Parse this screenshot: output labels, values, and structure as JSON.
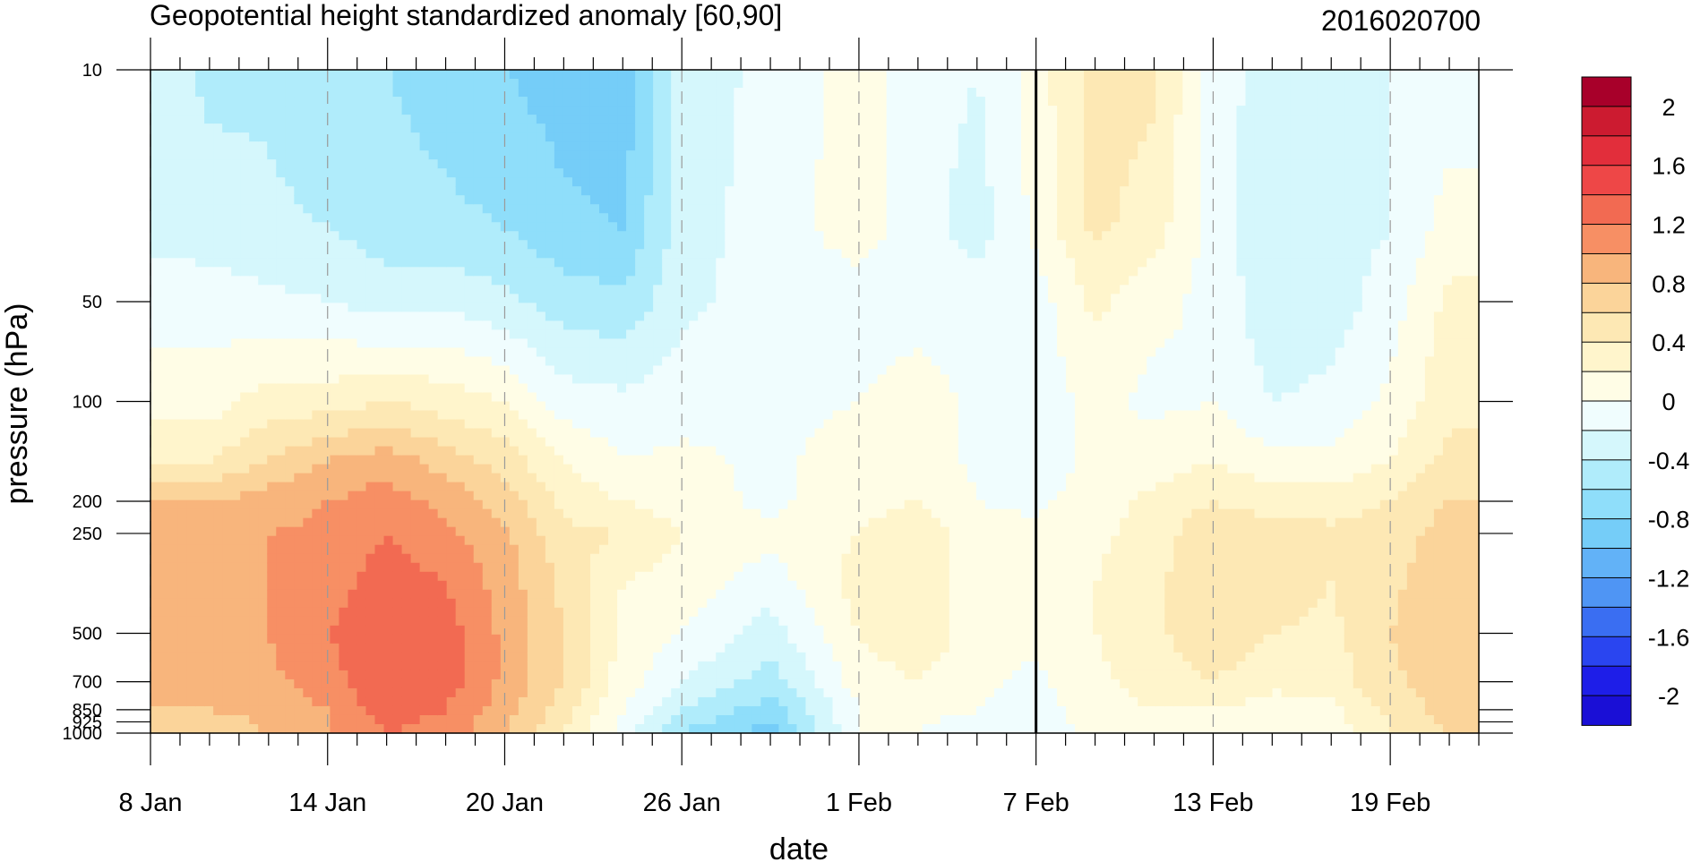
{
  "chart_data": {
    "type": "heatmap",
    "title": "Geopotential height standardized anomaly [60,90]",
    "date_label": "2016020700",
    "xlabel": "date",
    "ylabel": "pressure (hPa)",
    "x_range_days": [
      "2016-01-08",
      "2016-02-22"
    ],
    "x_ticks": [
      {
        "date": "2016-01-08",
        "label": "8 Jan"
      },
      {
        "date": "2016-01-14",
        "label": "14 Jan"
      },
      {
        "date": "2016-01-20",
        "label": "20 Jan"
      },
      {
        "date": "2016-01-26",
        "label": "26 Jan"
      },
      {
        "date": "2016-02-01",
        "label": "1 Feb"
      },
      {
        "date": "2016-02-07",
        "label": "7 Feb"
      },
      {
        "date": "2016-02-13",
        "label": "13 Feb"
      },
      {
        "date": "2016-02-19",
        "label": "19 Feb"
      }
    ],
    "y_scale": "log",
    "y_reversed": true,
    "y_range": [
      1000,
      10
    ],
    "y_ticks": [
      {
        "p": 10,
        "label": "10"
      },
      {
        "p": 50,
        "label": "50"
      },
      {
        "p": 100,
        "label": "100"
      },
      {
        "p": 200,
        "label": "200"
      },
      {
        "p": 250,
        "label": "250"
      },
      {
        "p": 500,
        "label": "500"
      },
      {
        "p": 700,
        "label": "700"
      },
      {
        "p": 850,
        "label": "850"
      },
      {
        "p": 925,
        "label": "925"
      },
      {
        "p": 1000,
        "label": "1000"
      }
    ],
    "current_date": "2016-02-07",
    "grid": "dashed vertical lines at x ticks",
    "colorbar": {
      "placement": "right",
      "levels": [
        -2.2,
        -2,
        -1.8,
        -1.6,
        -1.4,
        -1.2,
        -1,
        -0.8,
        -0.6,
        -0.4,
        -0.2,
        0,
        0.2,
        0.4,
        0.6,
        0.8,
        1,
        1.2,
        1.4,
        1.6,
        1.8,
        2,
        2.2
      ],
      "labels": [
        "2",
        "1.6",
        "1.2",
        "0.8",
        "0.4",
        "0",
        "-0.4",
        "-0.8",
        "-1.2",
        "-1.6",
        "-2"
      ],
      "colors_low_to_high": [
        "#1a0fd6",
        "#1e1ee8",
        "#2a45f0",
        "#3a6ef2",
        "#4f95f4",
        "#62b2f7",
        "#75cdf8",
        "#8fdefa",
        "#b0ecfb",
        "#d5f7fc",
        "#f0fdfe",
        "#fffde6",
        "#fff5cc",
        "#fde8b4",
        "#fbd49a",
        "#f8b57c",
        "#f78f64",
        "#f26a52",
        "#ee4747",
        "#e22e3b",
        "#cc1b30",
        "#a8002a"
      ]
    },
    "profiles_pressure": [
      10,
      30,
      50,
      100,
      150,
      200,
      250,
      350,
      500,
      700,
      850,
      1000
    ],
    "profiles": [
      {
        "date": "2016-01-08",
        "values": [
          -0.3,
          -0.25,
          -0.1,
          0.1,
          0.4,
          0.8,
          0.8,
          0.8,
          0.9,
          0.8,
          0.8,
          0.6
        ]
      },
      {
        "date": "2016-01-10",
        "values": [
          -0.45,
          -0.3,
          -0.1,
          0.1,
          0.4,
          0.8,
          0.85,
          0.9,
          0.9,
          0.85,
          0.8,
          0.6
        ]
      },
      {
        "date": "2016-01-12",
        "values": [
          -0.45,
          -0.35,
          -0.15,
          0.3,
          0.6,
          0.9,
          1.0,
          1.0,
          1.0,
          0.95,
          0.9,
          0.8
        ]
      },
      {
        "date": "2016-01-14",
        "values": [
          -0.6,
          -0.4,
          -0.2,
          0.3,
          0.8,
          1.0,
          1.05,
          1.1,
          1.2,
          1.1,
          1.0,
          1.0
        ]
      },
      {
        "date": "2016-01-16",
        "values": [
          -0.6,
          -0.5,
          -0.3,
          0.4,
          0.9,
          1.1,
          1.2,
          1.3,
          1.4,
          1.4,
          1.3,
          1.2
        ]
      },
      {
        "date": "2016-01-18",
        "values": [
          -0.7,
          -0.55,
          -0.25,
          0.3,
          0.7,
          0.95,
          1.05,
          1.2,
          1.3,
          1.3,
          1.2,
          1.1
        ]
      },
      {
        "date": "2016-01-20",
        "values": [
          -0.8,
          -0.6,
          -0.35,
          0.2,
          0.5,
          0.7,
          0.85,
          0.9,
          0.95,
          0.95,
          0.9,
          0.8
        ]
      },
      {
        "date": "2016-01-22",
        "values": [
          -0.9,
          -0.75,
          -0.5,
          -0.1,
          0.2,
          0.35,
          0.45,
          0.55,
          0.6,
          0.6,
          0.5,
          0.4
        ]
      },
      {
        "date": "2016-01-24",
        "values": [
          -0.95,
          -0.8,
          -0.55,
          -0.15,
          0.0,
          0.2,
          0.4,
          0.2,
          0.15,
          0.1,
          0.0,
          -0.1
        ]
      },
      {
        "date": "2016-01-26",
        "values": [
          -0.3,
          -0.3,
          -0.25,
          -0.1,
          0.05,
          0.1,
          0.2,
          0.1,
          0.0,
          -0.2,
          -0.4,
          -0.6
        ]
      },
      {
        "date": "2016-01-29",
        "values": [
          -0.15,
          -0.1,
          -0.1,
          -0.05,
          -0.05,
          -0.05,
          0.05,
          -0.1,
          -0.3,
          -0.5,
          -0.7,
          -0.9
        ]
      },
      {
        "date": "2016-02-01",
        "values": [
          0.1,
          0.1,
          -0.1,
          0.0,
          0.1,
          0.15,
          0.2,
          0.3,
          0.2,
          0.1,
          0.0,
          0.0
        ]
      },
      {
        "date": "2016-02-03",
        "values": [
          -0.1,
          -0.1,
          -0.1,
          0.1,
          0.15,
          0.2,
          0.3,
          0.35,
          0.35,
          0.2,
          0.1,
          0.0
        ]
      },
      {
        "date": "2016-02-05",
        "values": [
          -0.2,
          -0.3,
          -0.1,
          -0.05,
          -0.05,
          0.0,
          0.1,
          0.1,
          0.1,
          0.05,
          0.0,
          -0.2
        ]
      },
      {
        "date": "2016-02-07",
        "values": [
          0.1,
          0.05,
          -0.1,
          -0.1,
          -0.1,
          -0.05,
          0.05,
          0.05,
          0.05,
          -0.05,
          -0.1,
          -0.1
        ]
      },
      {
        "date": "2016-02-09",
        "values": [
          0.5,
          0.45,
          0.25,
          0.05,
          0.05,
          0.1,
          0.15,
          0.2,
          0.2,
          0.15,
          0.1,
          0.05
        ]
      },
      {
        "date": "2016-02-11",
        "values": [
          0.45,
          0.3,
          0.05,
          -0.05,
          0.1,
          0.25,
          0.3,
          0.35,
          0.35,
          0.3,
          0.2,
          0.15
        ]
      },
      {
        "date": "2016-02-13",
        "values": [
          -0.1,
          -0.1,
          -0.05,
          0.0,
          0.2,
          0.4,
          0.55,
          0.6,
          0.55,
          0.4,
          0.2,
          0.1
        ]
      },
      {
        "date": "2016-02-15",
        "values": [
          -0.3,
          -0.35,
          -0.35,
          -0.2,
          0.05,
          0.3,
          0.5,
          0.55,
          0.4,
          0.25,
          0.1,
          0.05
        ]
      },
      {
        "date": "2016-02-17",
        "values": [
          -0.3,
          -0.3,
          -0.3,
          -0.15,
          0.05,
          0.3,
          0.45,
          0.4,
          0.35,
          0.3,
          0.15,
          0.1
        ]
      },
      {
        "date": "2016-02-19",
        "values": [
          -0.2,
          -0.2,
          -0.1,
          0.05,
          0.2,
          0.4,
          0.5,
          0.55,
          0.6,
          0.55,
          0.45,
          0.4
        ]
      },
      {
        "date": "2016-02-21",
        "values": [
          -0.15,
          0.1,
          0.25,
          0.35,
          0.45,
          0.6,
          0.7,
          0.75,
          0.8,
          0.75,
          0.7,
          0.6
        ]
      }
    ]
  }
}
